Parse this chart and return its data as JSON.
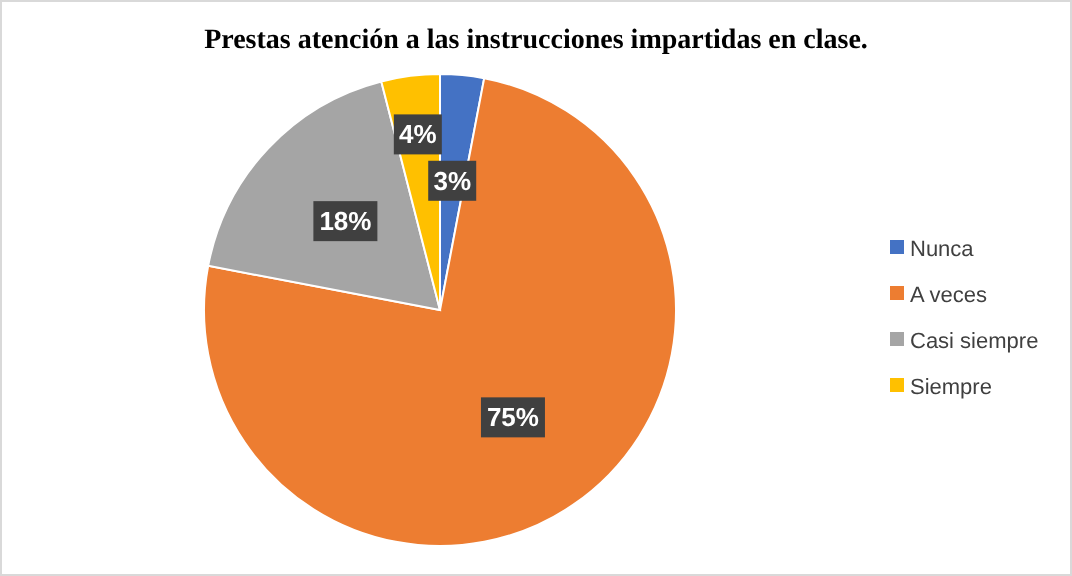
{
  "chart_data": {
    "type": "pie",
    "title": "Prestas atención a las instrucciones impartidas en clase.",
    "categories": [
      "Nunca",
      "A veces",
      "Casi siempre",
      "Siempre"
    ],
    "values": [
      3,
      75,
      18,
      4
    ],
    "colors": [
      "#4472c4",
      "#ed7d31",
      "#a5a5a5",
      "#ffc000"
    ],
    "value_labels": [
      "3%",
      "75%",
      "18%",
      "4%"
    ],
    "legend": "right"
  }
}
